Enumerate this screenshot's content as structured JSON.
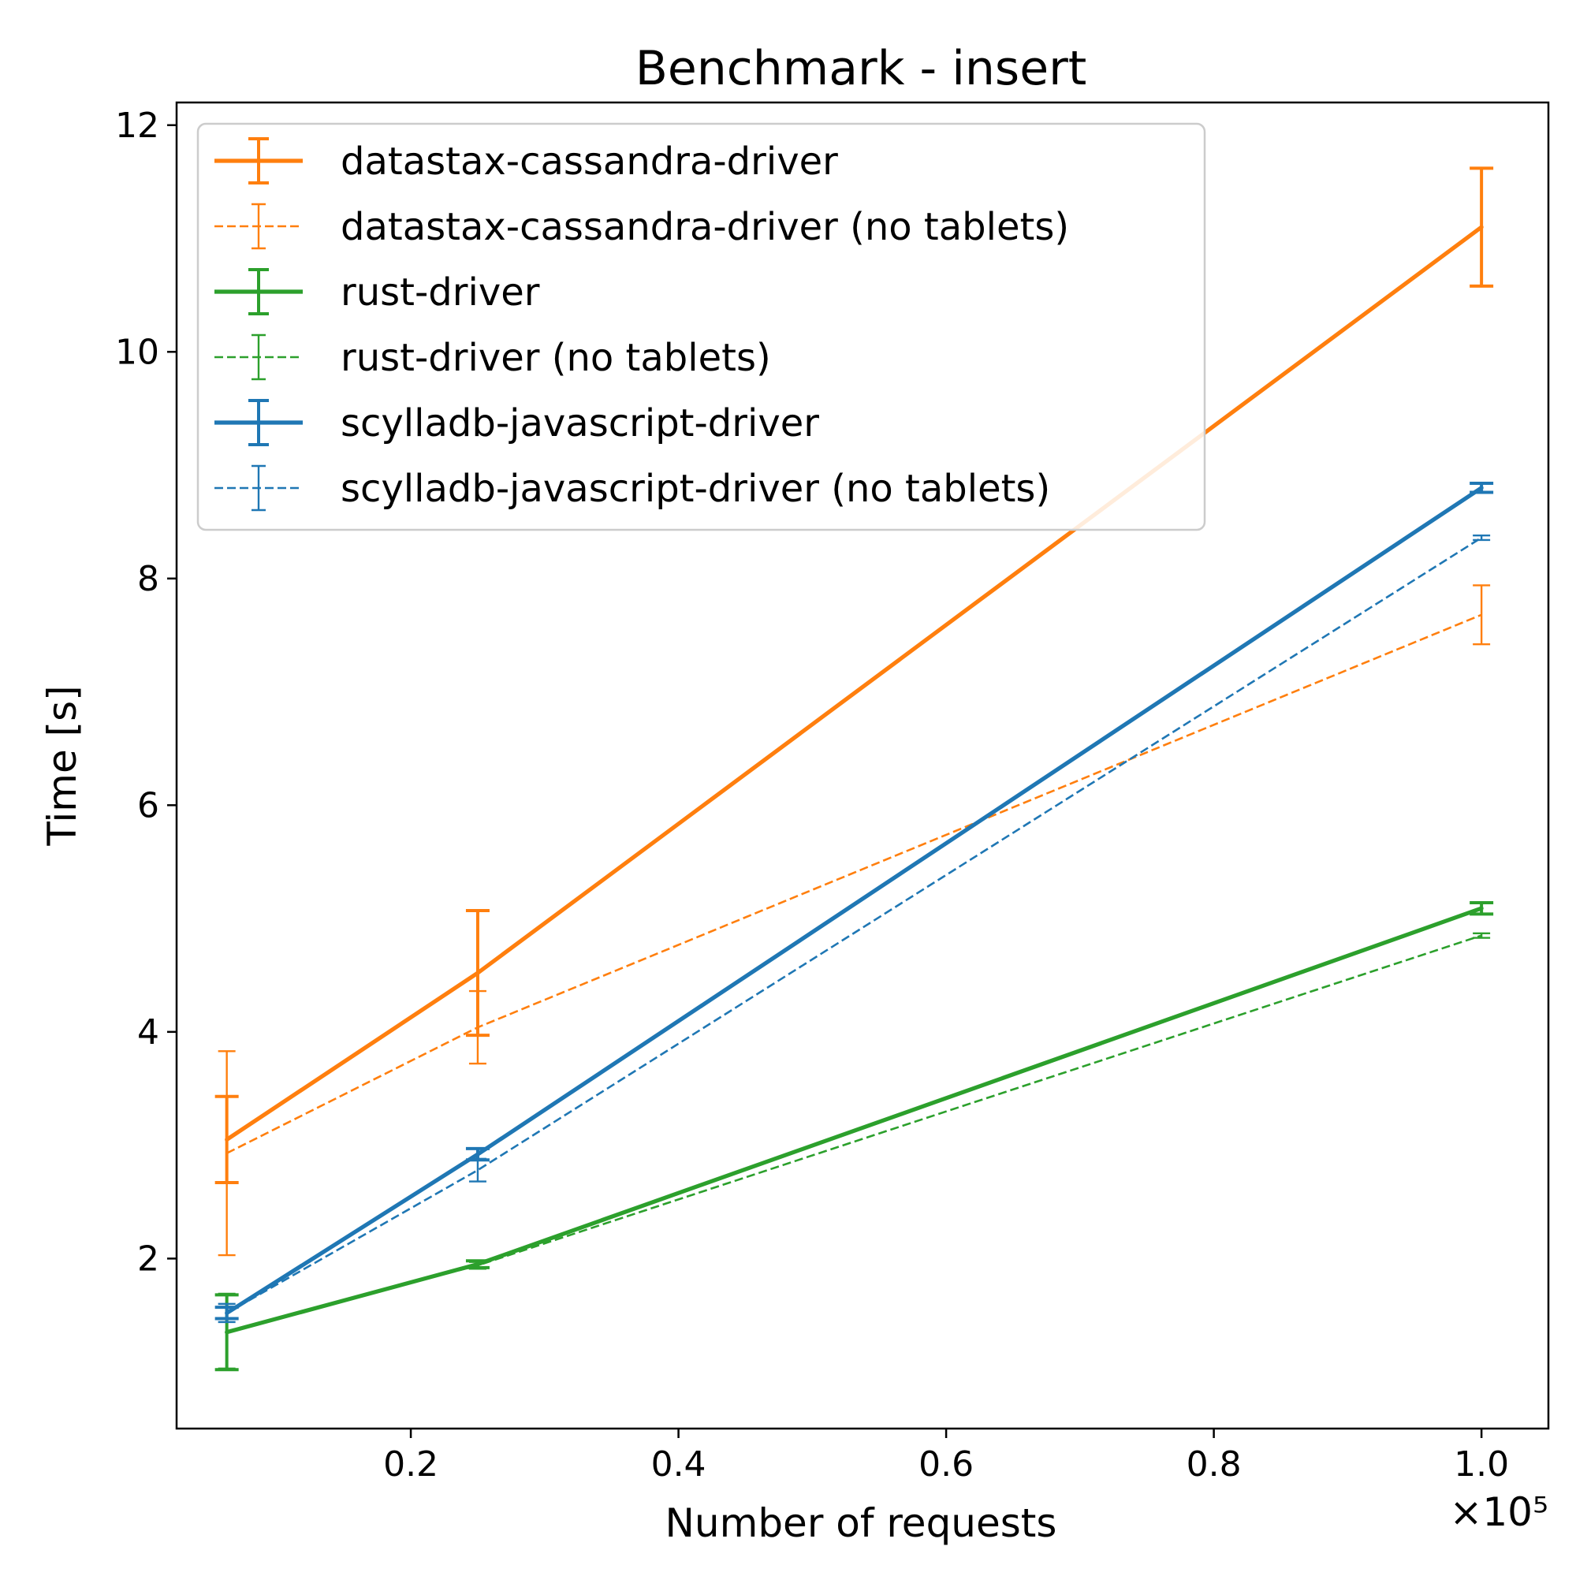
{
  "chart_data": {
    "type": "line",
    "title": "Benchmark - insert",
    "xlabel": "Number of requests",
    "ylabel": "Time [s]",
    "x_offset_text": "×10⁵",
    "x_scale": 100000,
    "xlim": [
      0.025,
      1.05
    ],
    "ylim": [
      0.5,
      12.2
    ],
    "xticks": [
      0.2,
      0.4,
      0.6,
      0.8,
      1.0
    ],
    "xtick_labels": [
      "0.2",
      "0.4",
      "0.6",
      "0.8",
      "1.0"
    ],
    "yticks": [
      2,
      4,
      6,
      8,
      10,
      12
    ],
    "ytick_labels": [
      "2",
      "4",
      "6",
      "8",
      "10",
      "12"
    ],
    "grid": false,
    "legend_position": "top-left",
    "x": [
      0.0625,
      0.25,
      1.0
    ],
    "series": [
      {
        "name": "datastax-cassandra-driver",
        "color": "#ff7f0e",
        "linestyle": "solid",
        "values": [
          3.05,
          4.52,
          11.1
        ],
        "errors": [
          0.38,
          0.55,
          0.52
        ]
      },
      {
        "name": "datastax-cassandra-driver (no tablets)",
        "color": "#ff7f0e",
        "linestyle": "dashed",
        "values": [
          2.93,
          4.04,
          7.68
        ],
        "errors": [
          0.9,
          0.32,
          0.26
        ]
      },
      {
        "name": "rust-driver",
        "color": "#2ca02c",
        "linestyle": "solid",
        "values": [
          1.35,
          1.95,
          5.09
        ],
        "errors": [
          0.33,
          0.03,
          0.05
        ]
      },
      {
        "name": "rust-driver (no tablets)",
        "color": "#2ca02c",
        "linestyle": "dashed",
        "values": [
          1.36,
          1.94,
          4.85
        ],
        "errors": [
          0.33,
          0.03,
          0.02
        ]
      },
      {
        "name": "scylladb-javascript-driver",
        "color": "#1f77b4",
        "linestyle": "solid",
        "values": [
          1.52,
          2.92,
          8.8
        ],
        "errors": [
          0.05,
          0.05,
          0.04
        ]
      },
      {
        "name": "scylladb-javascript-driver (no tablets)",
        "color": "#1f77b4",
        "linestyle": "dashed",
        "values": [
          1.52,
          2.78,
          8.36
        ],
        "errors": [
          0.08,
          0.1,
          0.02
        ]
      }
    ]
  }
}
